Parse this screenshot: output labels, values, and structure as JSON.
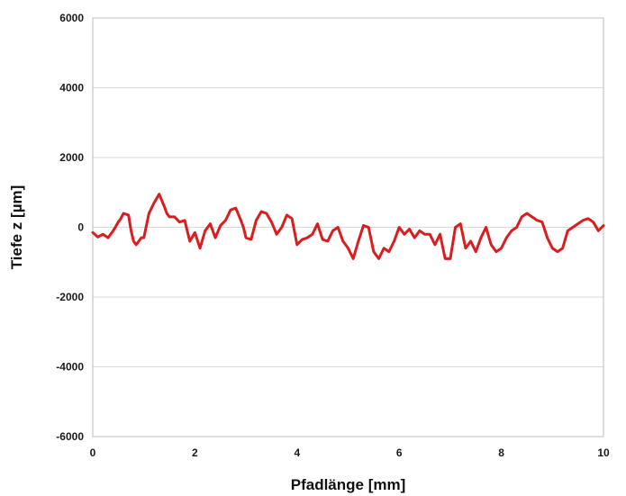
{
  "chart_data": {
    "type": "line",
    "title": "",
    "xlabel": "Pfadlänge [mm]",
    "ylabel": "Tiefe z [µm]",
    "xlim": [
      0,
      10
    ],
    "ylim": [
      -6000,
      6000
    ],
    "xticks": [
      0,
      2,
      4,
      6,
      8,
      10
    ],
    "xtick_labels": [
      "0",
      "2",
      "4",
      "6",
      "8",
      "10"
    ],
    "yticks": [
      -6000,
      -4000,
      -2000,
      0,
      2000,
      4000,
      6000
    ],
    "ytick_labels": [
      "-6000",
      "-4000",
      "-2000",
      "0",
      "2000",
      "4000",
      "6000"
    ],
    "grid": {
      "horizontal": true,
      "vertical": false
    },
    "legend": "none",
    "colors": {
      "series": "#d81e1e",
      "grid": "#d9d9d9",
      "frame": "#bdbdbd"
    },
    "series": [
      {
        "x": [
          0.0,
          0.1,
          0.2,
          0.3,
          0.4,
          0.5,
          0.55,
          0.6,
          0.7,
          0.75,
          0.8,
          0.85,
          0.95,
          1.0,
          1.1,
          1.2,
          1.3,
          1.4,
          1.45,
          1.5,
          1.6,
          1.7,
          1.8,
          1.9,
          2.0,
          2.1,
          2.2,
          2.3,
          2.4,
          2.5,
          2.6,
          2.7,
          2.8,
          2.9,
          2.95,
          3.0,
          3.1,
          3.2,
          3.3,
          3.4,
          3.5,
          3.6,
          3.7,
          3.8,
          3.9,
          4.0,
          4.1,
          4.2,
          4.3,
          4.4,
          4.5,
          4.6,
          4.7,
          4.8,
          4.9,
          5.0,
          5.1,
          5.2,
          5.3,
          5.4,
          5.5,
          5.6,
          5.7,
          5.8,
          5.9,
          6.0,
          6.1,
          6.2,
          6.3,
          6.4,
          6.5,
          6.6,
          6.7,
          6.8,
          6.9,
          7.0,
          7.1,
          7.2,
          7.3,
          7.4,
          7.5,
          7.6,
          7.7,
          7.8,
          7.9,
          8.0,
          8.1,
          8.2,
          8.3,
          8.4,
          8.5,
          8.6,
          8.7,
          8.8,
          8.9,
          9.0,
          9.1,
          9.2,
          9.3,
          9.4,
          9.5,
          9.6,
          9.7,
          9.8,
          9.9,
          10.0
        ],
        "y": [
          -150,
          -280,
          -200,
          -300,
          -100,
          150,
          250,
          400,
          350,
          -100,
          -400,
          -500,
          -300,
          -300,
          400,
          700,
          950,
          600,
          400,
          300,
          300,
          150,
          200,
          -400,
          -150,
          -600,
          -100,
          100,
          -300,
          50,
          200,
          500,
          550,
          200,
          0,
          -300,
          -350,
          200,
          450,
          400,
          150,
          -200,
          0,
          350,
          250,
          -500,
          -350,
          -300,
          -200,
          100,
          -350,
          -400,
          -100,
          0,
          -400,
          -600,
          -900,
          -400,
          50,
          0,
          -700,
          -900,
          -600,
          -700,
          -400,
          0,
          -200,
          -50,
          -300,
          -100,
          -200,
          -200,
          -500,
          -200,
          -900,
          -900,
          0,
          100,
          -600,
          -400,
          -700,
          -300,
          0,
          -500,
          -700,
          -600,
          -300,
          -100,
          0,
          300,
          400,
          300,
          200,
          150,
          -300,
          -600,
          -700,
          -600,
          -100,
          0,
          100,
          200,
          250,
          150,
          -100,
          50
        ]
      }
    ]
  }
}
